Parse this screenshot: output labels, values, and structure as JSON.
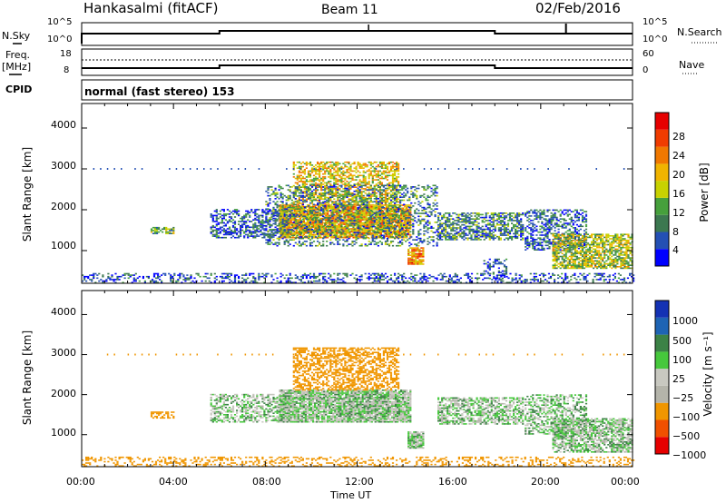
{
  "header": {
    "station": "Hankasalmi (fitACF)",
    "beam": "Beam 11",
    "date": "02/Feb/2016"
  },
  "nsky_panel": {
    "left_label": "N.Sky",
    "right_label": "N.Search",
    "left_ticks": [
      "10^5",
      "10^0"
    ],
    "right_ticks": [
      "10^5",
      "10^0"
    ]
  },
  "freq_panel": {
    "left_label": "Freq.",
    "left_unit": "[MHz]",
    "right_label": "Nave",
    "left_ticks": [
      "18",
      "8"
    ],
    "right_ticks": [
      "60",
      "0"
    ]
  },
  "cpid": {
    "label": "CPID",
    "text": "normal (fast stereo) 153"
  },
  "colors": {
    "power": [
      "#0000ff",
      "#2450b4",
      "#3c7850",
      "#46a03c",
      "#c8d200",
      "#f0b400",
      "#f07800",
      "#f03c00",
      "#e60000"
    ],
    "velocity": [
      "#e60000",
      "#f05000",
      "#f09600",
      "#b4b4aa",
      "#c8c8c0",
      "#46c83c",
      "#3c8246",
      "#1e64b4",
      "#1432b4"
    ]
  },
  "chart_data": [
    {
      "type": "heatmap",
      "name_in_chart": "power",
      "ylabel": "Slant Range [km]",
      "ylim": [
        200,
        4600
      ],
      "yticks": [
        "1000",
        "2000",
        "3000",
        "4000"
      ],
      "xlim": [
        0,
        24
      ],
      "colorbar_label": "Power [dB]",
      "colorbar_ticks": [
        "4",
        "8",
        "12",
        "16",
        "20",
        "24",
        "28"
      ],
      "colorbar_range": [
        0,
        32
      ],
      "regions": [
        {
          "t0": 0.0,
          "t1": 24.0,
          "r0": 200,
          "r1": 420,
          "value": 5,
          "density": 0.35
        },
        {
          "t0": 3.0,
          "t1": 4.0,
          "r0": 1400,
          "r1": 1560,
          "value": 12,
          "density": 0.6
        },
        {
          "t0": 5.6,
          "t1": 9.0,
          "r0": 1300,
          "r1": 2000,
          "value": 6,
          "density": 0.5
        },
        {
          "t0": 8.6,
          "t1": 14.3,
          "r0": 1300,
          "r1": 2100,
          "value": 20,
          "density": 0.9
        },
        {
          "t0": 9.2,
          "t1": 13.8,
          "r0": 2100,
          "r1": 3150,
          "value": 18,
          "density": 0.55
        },
        {
          "t0": 8.0,
          "t1": 15.5,
          "r0": 1100,
          "r1": 2600,
          "value": 9,
          "density": 0.35
        },
        {
          "t0": 14.2,
          "t1": 14.9,
          "r0": 650,
          "r1": 1050,
          "value": 22,
          "density": 0.9
        },
        {
          "t0": 15.5,
          "t1": 19.2,
          "r0": 1250,
          "r1": 1900,
          "value": 9,
          "density": 0.6
        },
        {
          "t0": 19.3,
          "t1": 22.0,
          "r0": 1000,
          "r1": 2000,
          "value": 7,
          "density": 0.5
        },
        {
          "t0": 20.5,
          "t1": 24.0,
          "r0": 550,
          "r1": 1400,
          "value": 15,
          "density": 0.7
        },
        {
          "t0": 17.5,
          "t1": 18.5,
          "r0": 300,
          "r1": 800,
          "value": 5,
          "density": 0.3
        }
      ]
    },
    {
      "type": "heatmap",
      "name_in_chart": "velocity",
      "ylabel": "Slant Range [km]",
      "xlabel": "Time UT",
      "ylim": [
        200,
        4600
      ],
      "yticks": [
        "1000",
        "2000",
        "3000",
        "4000"
      ],
      "xlim": [
        0,
        24
      ],
      "xticks": [
        "00:00",
        "04:00",
        "08:00",
        "12:00",
        "16:00",
        "20:00",
        "00:00"
      ],
      "colorbar_label": "Velocity [m s⁻¹]",
      "colorbar_ticks": [
        "1000",
        "500",
        "100",
        "25",
        "−25",
        "−100",
        "−500",
        "−1000"
      ],
      "regions": [
        {
          "t0": 0.0,
          "t1": 24.0,
          "r0": 200,
          "r1": 420,
          "value": -300,
          "density": 0.3
        },
        {
          "t0": 3.0,
          "t1": 4.0,
          "r0": 1400,
          "r1": 1560,
          "value": -200,
          "density": 0.6
        },
        {
          "t0": 5.6,
          "t1": 9.0,
          "r0": 1300,
          "r1": 2000,
          "value": 0,
          "density": 0.5
        },
        {
          "t0": 8.6,
          "t1": 14.3,
          "r0": 1300,
          "r1": 2100,
          "value": 0,
          "density": 0.9
        },
        {
          "t0": 9.2,
          "t1": 13.8,
          "r0": 2100,
          "r1": 3150,
          "value": -200,
          "density": 0.55
        },
        {
          "t0": 14.2,
          "t1": 14.9,
          "r0": 650,
          "r1": 1050,
          "value": 0,
          "density": 0.9
        },
        {
          "t0": 15.5,
          "t1": 19.2,
          "r0": 1250,
          "r1": 1900,
          "value": 0,
          "density": 0.6
        },
        {
          "t0": 19.3,
          "t1": 22.0,
          "r0": 1000,
          "r1": 2000,
          "value": 10,
          "density": 0.5
        },
        {
          "t0": 20.5,
          "t1": 24.0,
          "r0": 550,
          "r1": 1400,
          "value": 0,
          "density": 0.7
        }
      ]
    }
  ]
}
